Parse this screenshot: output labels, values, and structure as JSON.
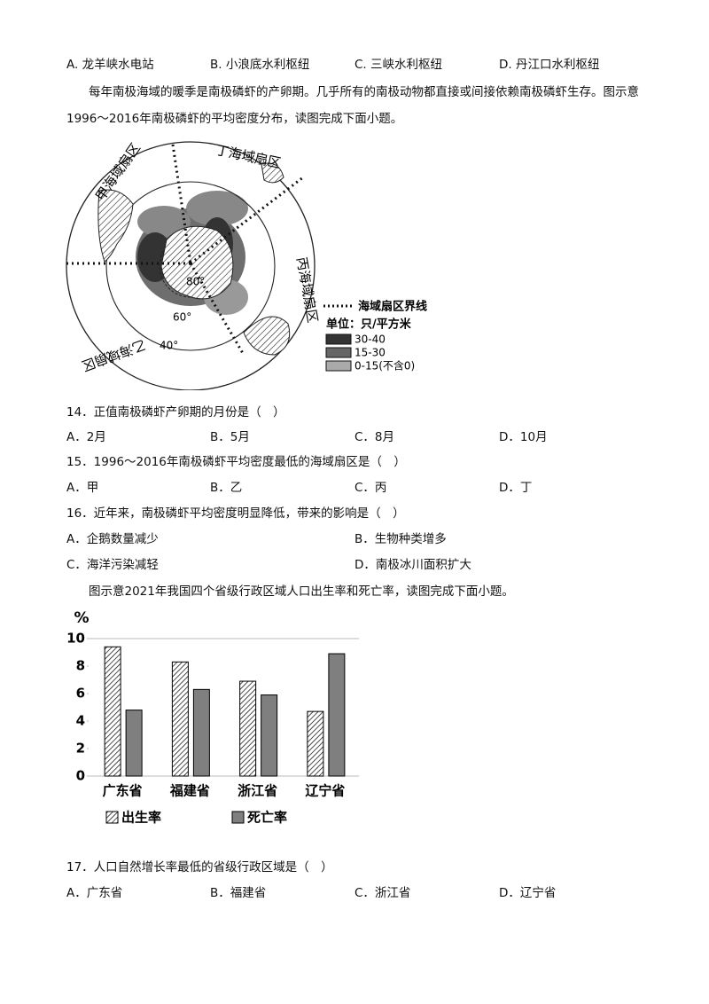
{
  "top_options": [
    "A. 龙羊峡水电站",
    "B. 小浪底水利枢纽",
    "C. 三峡水利枢纽",
    "D. 丹江口水利枢纽"
  ],
  "passage_1": "每年南极海域的暖季是南极磷虾的产卵期。几乎所有的南极动物都直接或间接依赖南极磷虾生存。图示意1996～2016年南极磷虾的平均密度分布，读图完成下面小题。",
  "map": {
    "sector_labels": [
      "甲海域扇区",
      "乙海域扇区",
      "丙海域扇区",
      "丁海域扇区"
    ],
    "latitude_labels": [
      "80°",
      "60°",
      "40°"
    ],
    "legend": {
      "boundary": "海域扇区界线",
      "unit": "单位：只/平方米",
      "classes": [
        "30-40",
        "15-30",
        "0-15(不含0)"
      ]
    }
  },
  "questions": [
    {
      "stem": "14．正值南极磷虾产卵期的月份是（　）",
      "options": [
        "A．2月",
        "B．5月",
        "C．8月",
        "D．10月"
      ]
    },
    {
      "stem": "15．1996～2016年南极磷虾平均密度最低的海域扇区是（　）",
      "options": [
        "A．甲",
        "B．乙",
        "C．丙",
        "D．丁"
      ]
    },
    {
      "stem": "16．近年来，南极磷虾平均密度明显降低，带来的影响是（　）",
      "options": [
        "A．企鹅数量减少",
        "B．生物种类增多",
        "C．海洋污染减轻",
        "D．南极冰川面积扩大"
      ]
    },
    {
      "stem": "17．人口自然增长率最低的省级行政区域是（　）",
      "options": [
        "A．广东省",
        "B．福建省",
        "C．浙江省",
        "D．辽宁省"
      ]
    }
  ],
  "passage_2": "图示意2021年我国四个省级行政区域人口出生率和死亡率，读图完成下面小题。",
  "chart_data": {
    "type": "bar",
    "y_label": "%",
    "categories": [
      "广东省",
      "福建省",
      "浙江省",
      "辽宁省"
    ],
    "series": [
      {
        "name": "出生率",
        "color": "#000000",
        "pattern": "hatch",
        "values": [
          9.4,
          8.3,
          6.9,
          4.7
        ]
      },
      {
        "name": "死亡率",
        "color": "#7f7f7f",
        "values": [
          4.8,
          6.3,
          5.9,
          8.9
        ]
      }
    ],
    "ylim": [
      0,
      10
    ],
    "yticks": [
      0,
      2,
      4,
      6,
      8,
      10
    ]
  }
}
